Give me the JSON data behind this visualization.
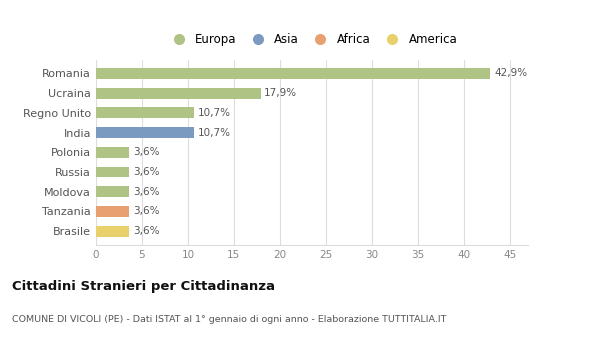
{
  "countries": [
    "Romania",
    "Ucraina",
    "Regno Unito",
    "India",
    "Polonia",
    "Russia",
    "Moldova",
    "Tanzania",
    "Brasile"
  ],
  "values": [
    42.9,
    17.9,
    10.7,
    10.7,
    3.6,
    3.6,
    3.6,
    3.6,
    3.6
  ],
  "labels": [
    "42,9%",
    "17,9%",
    "10,7%",
    "10,7%",
    "3,6%",
    "3,6%",
    "3,6%",
    "3,6%",
    "3,6%"
  ],
  "colors": [
    "#aec384",
    "#aec384",
    "#aec384",
    "#7b9abf",
    "#aec384",
    "#aec384",
    "#aec384",
    "#e8a070",
    "#e8d06a"
  ],
  "legend_items": [
    {
      "label": "Europa",
      "color": "#aec384"
    },
    {
      "label": "Asia",
      "color": "#7b9abf"
    },
    {
      "label": "Africa",
      "color": "#e8a070"
    },
    {
      "label": "America",
      "color": "#e8d06a"
    }
  ],
  "xlim": [
    0,
    47
  ],
  "xticks": [
    0,
    5,
    10,
    15,
    20,
    25,
    30,
    35,
    40,
    45
  ],
  "title_main": "Cittadini Stranieri per Cittadinanza",
  "title_sub": "COMUNE DI VICOLI (PE) - Dati ISTAT al 1° gennaio di ogni anno - Elaborazione TUTTITALIA.IT",
  "background_color": "#ffffff",
  "grid_color": "#dddddd",
  "bar_height": 0.55
}
